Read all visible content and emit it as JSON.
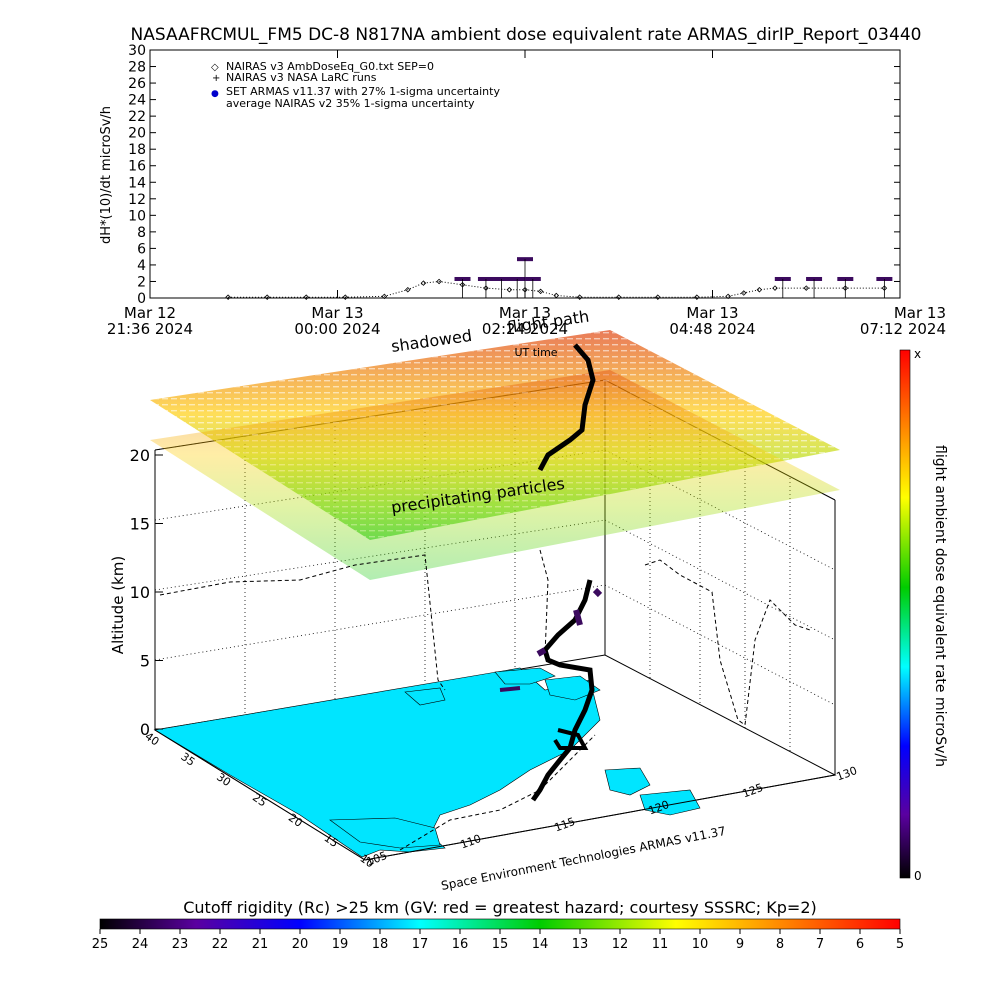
{
  "title": "NASAAFRCMUL_FM5 DC-8   N817NA ambient dose equivalent rate ARMAS_dirIP_Report_03440",
  "colors": {
    "path": "#000000",
    "measurement": "#3b0a5e",
    "bar": "#000000"
  },
  "top_chart": {
    "ylabel": "dH*(10)/dt microSv/h",
    "xlabel": "UT time",
    "yticks": [
      "0",
      "2",
      "4",
      "6",
      "8",
      "10",
      "12",
      "14",
      "16",
      "18",
      "20",
      "22",
      "24",
      "26",
      "28",
      "30"
    ],
    "xticks": [
      {
        "line1": "Mar 12",
        "line2": "21:36 2024"
      },
      {
        "line1": "Mar 13",
        "line2": "00:00 2024"
      },
      {
        "line1": "Mar 13",
        "line2": "02:24 2024"
      },
      {
        "line1": "Mar 13",
        "line2": "04:48 2024"
      },
      {
        "line1": "Mar 13",
        "line2": "07:12 2024"
      }
    ],
    "legend": [
      {
        "symbol": "◇",
        "text": "NAIRAS v3 AmbDoseEq_G0.txt SEP=0"
      },
      {
        "symbol": "+",
        "text": "NAIRAS v3 NASA LaRC runs"
      },
      {
        "symbol": "●",
        "text": "SET ARMAS v11.37 with 27% 1-sigma uncertainty"
      },
      {
        "symbol": "",
        "text": "average NAIRAS v2 35% 1-sigma uncertainty"
      }
    ]
  },
  "scene": {
    "zlabel": "Altitude (km)",
    "zticks": [
      "0",
      "5",
      "10",
      "15",
      "20"
    ],
    "lat_ticks": [
      "40",
      "35",
      "30",
      "25",
      "20",
      "15",
      "10"
    ],
    "lon_ticks": [
      "105",
      "110",
      "115",
      "120",
      "125",
      "130"
    ],
    "labels": {
      "shadowed": "shadowed",
      "flight_path": "flight path",
      "precipitating": "precipitating particles",
      "credit": "Space Environment Technologies ARMAS v11.37"
    }
  },
  "right_colorbar": {
    "label": "flight ambient dose equivalent rate microSv/h",
    "top": "x",
    "bottom": "0"
  },
  "bottom_colorbar": {
    "title": "Cutoff rigidity (Rc) >25 km (GV: red = greatest hazard; courtesy SSSRC; Kp=2)",
    "ticks": [
      "25",
      "24",
      "23",
      "22",
      "21",
      "20",
      "19",
      "18",
      "17",
      "16",
      "15",
      "14",
      "13",
      "12",
      "11",
      "10",
      "9",
      "8",
      "7",
      "6",
      "5"
    ]
  },
  "chart_data": {
    "type": "line",
    "xlabel": "UT time",
    "ylabel": "dH*(10)/dt microSv/h",
    "ylim": [
      0,
      30
    ],
    "xlim": [
      "2024-03-12 21:36",
      "2024-03-13 07:12"
    ],
    "series": [
      {
        "name": "NAIRAS v3 AmbDoseEq_G0.txt SEP=0",
        "x": [
          "2024-03-12 22:36",
          "2024-03-12 23:06",
          "2024-03-12 23:36",
          "2024-03-13 00:06",
          "2024-03-13 00:36",
          "2024-03-13 00:54",
          "2024-03-13 01:06",
          "2024-03-13 01:18",
          "2024-03-13 01:36",
          "2024-03-13 01:54",
          "2024-03-13 02:12",
          "2024-03-13 02:24",
          "2024-03-13 02:36",
          "2024-03-13 02:48",
          "2024-03-13 03:06",
          "2024-03-13 03:36",
          "2024-03-13 04:06",
          "2024-03-13 04:36",
          "2024-03-13 05:00",
          "2024-03-13 05:12",
          "2024-03-13 05:24",
          "2024-03-13 05:36",
          "2024-03-13 06:00",
          "2024-03-13 06:30",
          "2024-03-13 07:00"
        ],
        "y": [
          0.1,
          0.1,
          0.1,
          0.1,
          0.2,
          1.0,
          1.8,
          2.0,
          1.6,
          1.2,
          1.0,
          1.0,
          0.8,
          0.3,
          0.1,
          0.1,
          0.1,
          0.1,
          0.2,
          0.6,
          1.0,
          1.2,
          1.2,
          1.2,
          1.2
        ]
      },
      {
        "name": "SET ARMAS v11.37 with 27% 1-sigma uncertainty",
        "x": [
          "2024-03-13 01:36",
          "2024-03-13 01:54",
          "2024-03-13 02:06",
          "2024-03-13 02:18",
          "2024-03-13 02:24",
          "2024-03-13 02:30",
          "2024-03-13 05:42",
          "2024-03-13 06:06",
          "2024-03-13 06:30",
          "2024-03-13 07:00"
        ],
        "y": [
          2.3,
          2.3,
          2.3,
          2.3,
          4.7,
          2.3,
          2.3,
          2.3,
          2.3,
          2.3
        ]
      }
    ]
  }
}
